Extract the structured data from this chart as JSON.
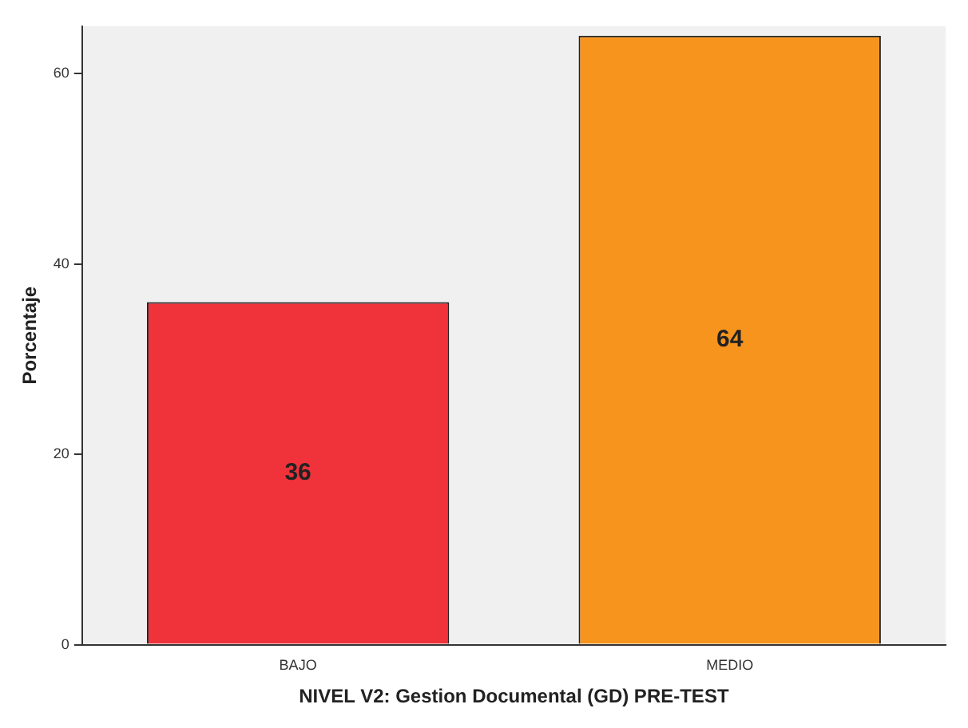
{
  "chart_data": {
    "type": "bar",
    "xlabel": "NIVEL V2: Gestion Documental (GD) PRE-TEST",
    "ylabel": "Porcentaje",
    "categories": [
      "BAJO",
      "MEDIO"
    ],
    "values": [
      36,
      64
    ],
    "colors": [
      "#f0323a",
      "#f7941d"
    ],
    "ylim": [
      0,
      65
    ],
    "yticks": [
      0,
      20,
      40,
      60
    ],
    "grid": false,
    "data_labels": true,
    "legend": false
  }
}
